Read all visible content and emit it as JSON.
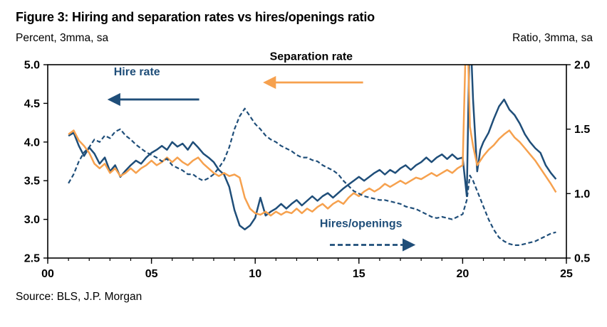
{
  "chart_data": {
    "type": "line",
    "title": "Figure 3: Hiring and separation rates vs hires/openings ratio",
    "source": "Source: BLS, J.P. Morgan",
    "colors": {
      "navy": "#1F4E79",
      "orange": "#F6A14E",
      "axis": "#000000"
    },
    "left_axis": {
      "label": "Percent, 3mma, sa",
      "min": 2.5,
      "max": 5.0,
      "ticks": [
        2.5,
        3.0,
        3.5,
        4.0,
        4.5,
        5.0
      ]
    },
    "right_axis": {
      "label": "Ratio, 3mma, sa",
      "min": 0.5,
      "max": 2.0,
      "ticks": [
        0.5,
        1.0,
        1.5,
        2.0
      ]
    },
    "x_axis": {
      "min": 2000,
      "max": 2025,
      "tick_values": [
        2000,
        2005,
        2010,
        2015,
        2020,
        2025
      ],
      "tick_labels": [
        "00",
        "05",
        "10",
        "15",
        "20",
        "25"
      ],
      "minor_tick_step": 1
    },
    "x": [
      2001,
      2001.25,
      2001.5,
      2001.75,
      2002,
      2002.25,
      2002.5,
      2002.75,
      2003,
      2003.25,
      2003.5,
      2003.75,
      2004,
      2004.25,
      2004.5,
      2004.75,
      2005,
      2005.25,
      2005.5,
      2005.75,
      2006,
      2006.25,
      2006.5,
      2006.75,
      2007,
      2007.25,
      2007.5,
      2007.75,
      2008,
      2008.25,
      2008.5,
      2008.75,
      2009,
      2009.25,
      2009.5,
      2009.75,
      2010,
      2010.25,
      2010.5,
      2010.75,
      2011,
      2011.25,
      2011.5,
      2011.75,
      2012,
      2012.25,
      2012.5,
      2012.75,
      2013,
      2013.25,
      2013.5,
      2013.75,
      2014,
      2014.25,
      2014.5,
      2014.75,
      2015,
      2015.25,
      2015.5,
      2015.75,
      2016,
      2016.25,
      2016.5,
      2016.75,
      2017,
      2017.25,
      2017.5,
      2017.75,
      2018,
      2018.25,
      2018.5,
      2018.75,
      2019,
      2019.25,
      2019.5,
      2019.75,
      2020,
      2020.2,
      2020.35,
      2020.5,
      2020.7,
      2020.85,
      2021,
      2021.25,
      2021.5,
      2021.75,
      2022,
      2022.25,
      2022.5,
      2022.75,
      2023,
      2023.25,
      2023.5,
      2023.75,
      2024,
      2024.25,
      2024.5
    ],
    "series": [
      {
        "name": "Hire rate",
        "axis": "left",
        "style": "solid",
        "color": "#1F4E79",
        "values": [
          4.08,
          4.12,
          3.95,
          3.82,
          3.93,
          3.85,
          3.72,
          3.8,
          3.62,
          3.7,
          3.55,
          3.63,
          3.7,
          3.76,
          3.72,
          3.8,
          3.86,
          3.9,
          3.95,
          3.9,
          4.0,
          3.94,
          3.98,
          3.9,
          4.0,
          3.93,
          3.85,
          3.8,
          3.74,
          3.64,
          3.58,
          3.42,
          3.12,
          2.92,
          2.87,
          2.92,
          3.02,
          3.28,
          3.05,
          3.1,
          3.14,
          3.2,
          3.14,
          3.2,
          3.25,
          3.18,
          3.24,
          3.3,
          3.24,
          3.3,
          3.34,
          3.28,
          3.34,
          3.4,
          3.45,
          3.5,
          3.55,
          3.5,
          3.55,
          3.6,
          3.64,
          3.58,
          3.64,
          3.6,
          3.66,
          3.7,
          3.64,
          3.7,
          3.74,
          3.8,
          3.74,
          3.8,
          3.84,
          3.78,
          3.84,
          3.78,
          3.8,
          3.3,
          5.6,
          4.55,
          3.62,
          3.9,
          4.0,
          4.12,
          4.3,
          4.46,
          4.55,
          4.42,
          4.35,
          4.24,
          4.1,
          4.0,
          3.92,
          3.86,
          3.7,
          3.6,
          3.52
        ]
      },
      {
        "name": "Separation rate",
        "axis": "left",
        "style": "solid",
        "color": "#F6A14E",
        "values": [
          4.1,
          4.15,
          4.02,
          3.95,
          3.86,
          3.72,
          3.66,
          3.72,
          3.6,
          3.66,
          3.56,
          3.6,
          3.66,
          3.6,
          3.66,
          3.7,
          3.76,
          3.7,
          3.74,
          3.8,
          3.74,
          3.8,
          3.74,
          3.7,
          3.76,
          3.8,
          3.72,
          3.66,
          3.6,
          3.56,
          3.6,
          3.56,
          3.58,
          3.54,
          3.28,
          3.14,
          3.08,
          3.06,
          3.1,
          3.05,
          3.1,
          3.06,
          3.1,
          3.08,
          3.14,
          3.08,
          3.14,
          3.1,
          3.16,
          3.2,
          3.14,
          3.2,
          3.24,
          3.2,
          3.28,
          3.34,
          3.3,
          3.36,
          3.4,
          3.36,
          3.4,
          3.46,
          3.42,
          3.46,
          3.5,
          3.46,
          3.5,
          3.54,
          3.52,
          3.56,
          3.6,
          3.56,
          3.6,
          3.64,
          3.6,
          3.66,
          3.7,
          5.8,
          4.2,
          3.95,
          3.7,
          3.76,
          3.82,
          3.9,
          3.96,
          4.04,
          4.1,
          4.15,
          4.06,
          4.0,
          3.92,
          3.84,
          3.76,
          3.66,
          3.56,
          3.46,
          3.35
        ]
      },
      {
        "name": "Hires/openings",
        "axis": "right",
        "style": "dashed",
        "color": "#1F4E79",
        "values": [
          1.08,
          1.15,
          1.25,
          1.32,
          1.36,
          1.42,
          1.4,
          1.45,
          1.43,
          1.48,
          1.5,
          1.45,
          1.42,
          1.38,
          1.35,
          1.32,
          1.3,
          1.28,
          1.25,
          1.27,
          1.22,
          1.2,
          1.18,
          1.15,
          1.15,
          1.12,
          1.1,
          1.12,
          1.15,
          1.2,
          1.26,
          1.36,
          1.5,
          1.6,
          1.66,
          1.6,
          1.54,
          1.5,
          1.45,
          1.42,
          1.4,
          1.37,
          1.35,
          1.33,
          1.3,
          1.28,
          1.28,
          1.26,
          1.25,
          1.22,
          1.2,
          1.18,
          1.15,
          1.1,
          1.06,
          1.02,
          1.0,
          0.98,
          0.97,
          0.96,
          0.95,
          0.95,
          0.94,
          0.93,
          0.92,
          0.9,
          0.89,
          0.88,
          0.86,
          0.84,
          0.82,
          0.81,
          0.82,
          0.81,
          0.8,
          0.82,
          0.84,
          0.95,
          1.14,
          1.1,
          1.02,
          0.96,
          0.9,
          0.8,
          0.72,
          0.66,
          0.63,
          0.61,
          0.6,
          0.6,
          0.61,
          0.62,
          0.63,
          0.65,
          0.67,
          0.69,
          0.7
        ]
      }
    ],
    "annotations": [
      {
        "name": "hire-rate-label",
        "text": "Hire rate",
        "x": 2004.3,
        "y": 4.86,
        "text_color": "#1F4E79",
        "arrow": {
          "x1": 2007.3,
          "y1": 4.55,
          "x2": 2003.0,
          "y2": 4.55,
          "dashed": false,
          "color": "#1F4E79"
        }
      },
      {
        "name": "separation-rate-label",
        "text": "Separation rate",
        "x": 2012.7,
        "y": 5.06,
        "text_color": "#000000",
        "arrow": {
          "x1": 2015.2,
          "y1": 4.77,
          "x2": 2010.5,
          "y2": 4.77,
          "dashed": false,
          "color": "#F6A14E"
        }
      },
      {
        "name": "hires-openings-label",
        "text": "Hires/openings",
        "x": 2015.1,
        "y": 2.9,
        "text_color": "#1F4E79",
        "arrow": {
          "x1": 2013.6,
          "y1": 2.67,
          "x2": 2017.6,
          "y2": 2.67,
          "dashed": true,
          "color": "#1F4E79"
        }
      }
    ]
  }
}
